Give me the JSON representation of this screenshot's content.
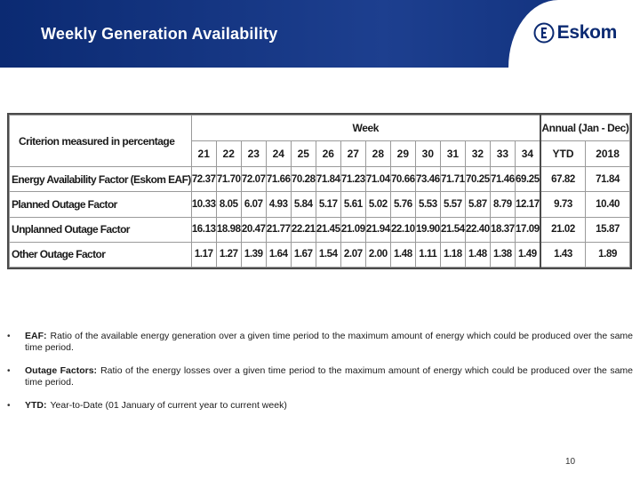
{
  "header": {
    "title": "Weekly Generation Availability",
    "logo_text": "Eskom",
    "brand_color": "#0b2a72"
  },
  "table": {
    "criterion_header": "Criterion measured in percentage",
    "week_header": "Week",
    "annual_header": "Annual (Jan - Dec)",
    "weeks": [
      "21",
      "22",
      "23",
      "24",
      "25",
      "26",
      "27",
      "28",
      "29",
      "30",
      "31",
      "32",
      "33",
      "34"
    ],
    "annual_columns": [
      "YTD",
      "2018"
    ],
    "rows": [
      {
        "label": "Energy Availability Factor (Eskom EAF)",
        "weekly": [
          "72.37",
          "71.70",
          "72.07",
          "71.66",
          "70.28",
          "71.84",
          "71.23",
          "71.04",
          "70.66",
          "73.46",
          "71.71",
          "70.25",
          "71.46",
          "69.25"
        ],
        "annual": [
          "67.82",
          "71.84"
        ]
      },
      {
        "label": "Planned Outage Factor",
        "weekly": [
          "10.33",
          "8.05",
          "6.07",
          "4.93",
          "5.84",
          "5.17",
          "5.61",
          "5.02",
          "5.76",
          "5.53",
          "5.57",
          "5.87",
          "8.79",
          "12.17"
        ],
        "annual": [
          "9.73",
          "10.40"
        ]
      },
      {
        "label": "Unplanned Outage Factor",
        "weekly": [
          "16.13",
          "18.98",
          "20.47",
          "21.77",
          "22.21",
          "21.45",
          "21.09",
          "21.94",
          "22.10",
          "19.90",
          "21.54",
          "22.40",
          "18.37",
          "17.09"
        ],
        "annual": [
          "21.02",
          "15.87"
        ]
      },
      {
        "label": "Other Outage Factor",
        "weekly": [
          "1.17",
          "1.27",
          "1.39",
          "1.64",
          "1.67",
          "1.54",
          "2.07",
          "2.00",
          "1.48",
          "1.11",
          "1.18",
          "1.48",
          "1.38",
          "1.49"
        ],
        "annual": [
          "1.43",
          "1.89"
        ]
      }
    ]
  },
  "bullets": [
    {
      "term": "EAF:",
      "text": "Ratio of the available energy generation over a given time period to the maximum amount of energy which could be produced over the same time period."
    },
    {
      "term": "Outage Factors:",
      "text": "Ratio of the energy losses over a given time period to the maximum amount of energy which could be produced over the same time period."
    },
    {
      "term": "YTD:",
      "text": "Year-to-Date (01 January of current year to current week)"
    }
  ],
  "bullet_symbol": "•",
  "page_number": "10"
}
